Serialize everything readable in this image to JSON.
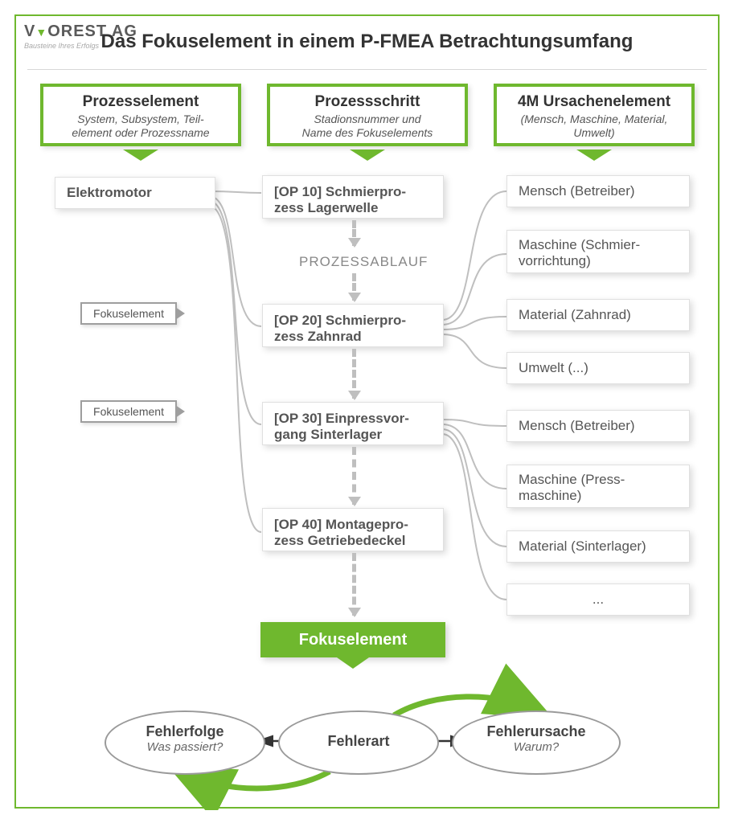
{
  "logo": {
    "brand": "VOREST AG",
    "tagline": "Bausteine Ihres Erfolgs"
  },
  "title": "Das Fokuselement in einem P-FMEA Betrachtungsumfang",
  "colors": {
    "accent": "#6fb82e",
    "node_border": "#e0e0e0",
    "text_main": "#333333",
    "text_sub": "#555555",
    "grey_line": "#bfbfbf",
    "tag_border": "#9e9e9e"
  },
  "columns": {
    "left": {
      "title": "Prozesselement",
      "subtitle": "System, Subsystem, Teil-\nelement oder Prozessname"
    },
    "mid": {
      "title": "Prozessschritt",
      "subtitle": "Stadionsnummer und\nName des Fokuselements"
    },
    "right": {
      "title": "4M Ursachenelement",
      "subtitle": "(Mensch, Maschine, Material,\nUmwelt)"
    }
  },
  "left_node": "Elektromotor",
  "tags": [
    "Fokuselement",
    "Fokuselement"
  ],
  "process_label": "PROZESSABLAUF",
  "steps": [
    "[OP 10] Schmierpro-\nzess Lagerwelle",
    "[OP 20] Schmierpro-\nzess Zahnrad",
    "[OP 30] Einpressvor-\ngang Sinterlager",
    "[OP 40] Montagepro-\nzess Getriebedeckel"
  ],
  "causes_top": [
    "Mensch (Betreiber)",
    "Maschine (Schmier-\nvorrichtung)",
    "Material (Zahnrad)",
    "Umwelt (...)"
  ],
  "causes_bottom": [
    "Mensch (Betreiber)",
    "Maschine (Press-\nmaschine)",
    "Material (Sinterlager)",
    "..."
  ],
  "fokus_label": "Fokuselement",
  "ellipses": {
    "left": {
      "title": "Fehlerfolge",
      "sub": "Was passiert?"
    },
    "mid": {
      "title": "Fehlerart",
      "sub": ""
    },
    "right": {
      "title": "Fehlerursache",
      "sub": "Warum?"
    }
  }
}
